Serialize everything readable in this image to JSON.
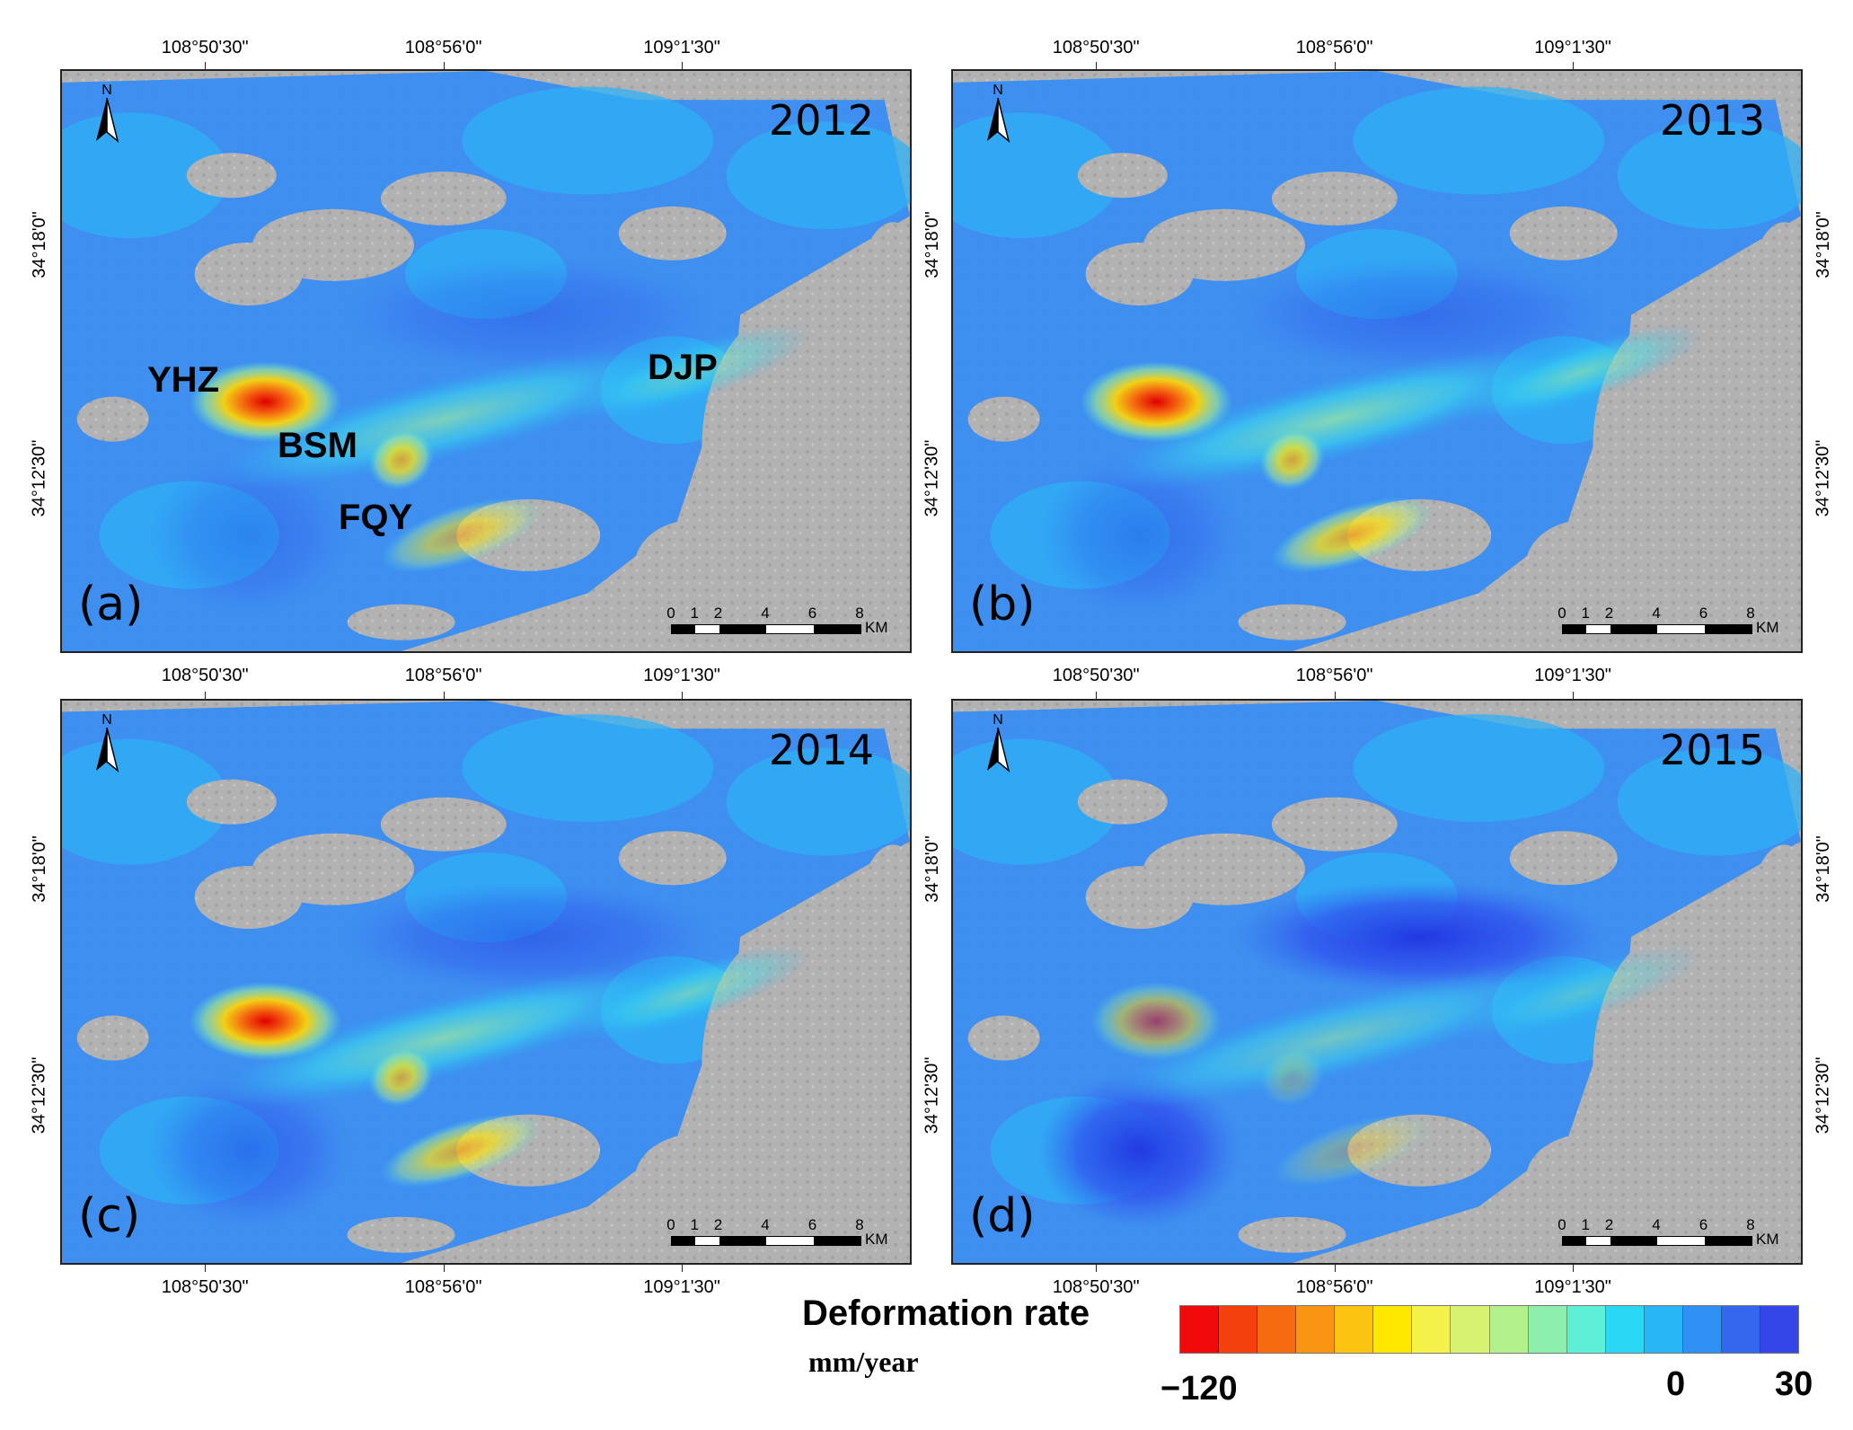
{
  "panels": [
    {
      "year": "2012",
      "label": "(a)",
      "places": [
        {
          "name": "YHZ"
        },
        {
          "name": "BSM"
        },
        {
          "name": "FQY"
        },
        {
          "name": "DJP"
        }
      ]
    },
    {
      "year": "2013",
      "label": "(b)",
      "places": []
    },
    {
      "year": "2014",
      "label": "(c)",
      "places": []
    },
    {
      "year": "2015",
      "label": "(d)",
      "places": []
    }
  ],
  "north_label": "N",
  "scalebar": {
    "ticks": [
      "0",
      "1",
      "2",
      "4",
      "6",
      "8"
    ],
    "unit": "KM"
  },
  "x_ticks": [
    "108°50'30\"",
    "108°56'0\"",
    "109°1'30\""
  ],
  "y_ticks": [
    "34°18'0\"",
    "34°12'30\""
  ],
  "legend": {
    "title": "Deformation rate",
    "unit": "mm/year",
    "min_label": "−120",
    "zero_label": "0",
    "max_label": "30",
    "colors": [
      "#f00a0a",
      "#f4400c",
      "#f66a10",
      "#f99513",
      "#fbc410",
      "#ffe800",
      "#f4f14a",
      "#d6f270",
      "#b1f08b",
      "#8cf0ac",
      "#5cf0d6",
      "#2ad8f5",
      "#29b5f6",
      "#2f90f5",
      "#3567ee",
      "#3546e9"
    ]
  }
}
